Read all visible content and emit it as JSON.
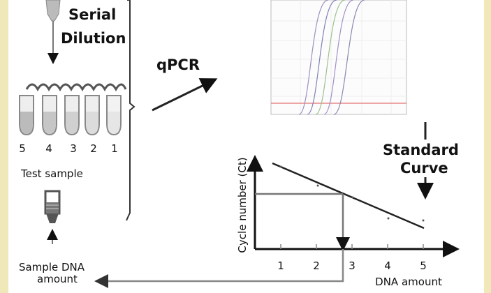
{
  "labels": {
    "serial": "Serial",
    "dilution": "Dilution",
    "qpcr": "qPCR",
    "standard": "Standard",
    "curve": "Curve",
    "test_sample": "Test sample",
    "sample_dna": "Sample DNA",
    "amount": "amount",
    "y_axis": "Cycle number (Ct)",
    "x_axis": "DNA amount"
  },
  "tube_numbers": [
    "5",
    "4",
    "3",
    "2",
    "1"
  ],
  "x_ticks": [
    "1",
    "2",
    "3",
    "4",
    "5"
  ],
  "colors": {
    "side_band": "#f0e8b8",
    "threshold": "#e88888",
    "axis": "#111111",
    "guide": "#777777"
  }
}
